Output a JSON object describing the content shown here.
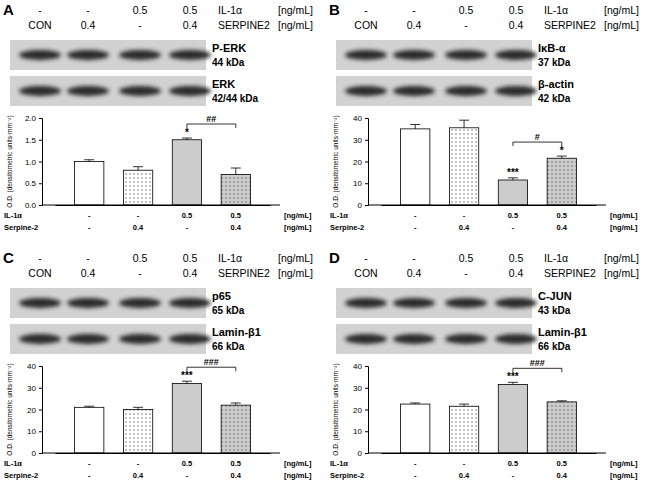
{
  "chart_data": [
    {
      "type": "bar",
      "panel": "A",
      "header": [
        {
          "values": [
            "-",
            "-",
            "0.5",
            "0.5"
          ],
          "label": "IL-1α",
          "unit": "[ng/mL]"
        },
        {
          "values": [
            "CON",
            "0.4",
            "-",
            "0.4"
          ],
          "label": "SERPINE2",
          "unit": "[ng/mL]"
        }
      ],
      "blots": [
        {
          "name": "P-ERK",
          "size": "44 kDa"
        },
        {
          "name": "ERK",
          "size": "42/44 kDa"
        }
      ],
      "y_label": "O.D. (densitometric units·mm⁻²)",
      "categories": [
        null,
        null,
        null,
        null
      ],
      "values": [
        1.0,
        0.8,
        1.5,
        0.7
      ],
      "errors": [
        0.04,
        0.08,
        0.04,
        0.15
      ],
      "colors": [
        "#ffffff",
        "#ffffff",
        "#cccccc",
        "#cccccc"
      ],
      "ylim": [
        0,
        2
      ],
      "yticks": [
        {
          "value": 0,
          "label": "0.0"
        },
        {
          "value": 0.5,
          "label": "0.5"
        },
        {
          "value": 1,
          "label": "1.0"
        },
        {
          "value": 1.5,
          "label": "1.5"
        },
        {
          "value": 2,
          "label": "2.0"
        }
      ],
      "annotations": [
        {
          "text": "*",
          "category": 2
        }
      ],
      "brackets": [
        {
          "text": "##",
          "from": 2,
          "to": 3
        }
      ],
      "treatments": [
        {
          "label": "IL-1α",
          "values": [
            "-",
            "-",
            "0.5",
            "0.5"
          ],
          "unit": "[ng/mL]"
        },
        {
          "label": "Serpine-2",
          "values": [
            "-",
            "0.4",
            "-",
            "0.4"
          ],
          "unit": "[ng/mL]"
        }
      ]
    },
    {
      "type": "bar",
      "panel": "B",
      "header": [
        {
          "values": [
            "-",
            "-",
            "0.5",
            "0.5"
          ],
          "label": "IL-1α",
          "unit": "[ng/mL]"
        },
        {
          "values": [
            "CON",
            "0.4",
            "-",
            "0.4"
          ],
          "label": "SERPINE2",
          "unit": "[ng/mL]"
        }
      ],
      "blots": [
        {
          "name": "IκB-α",
          "size": "37 kDa"
        },
        {
          "name": "β-actin",
          "size": "42 kDa"
        }
      ],
      "y_label": "O.D. (densitometric units·mm⁻²)",
      "categories": [
        null,
        null,
        null,
        null
      ],
      "values": [
        35,
        35.5,
        11.5,
        21.5
      ],
      "errors": [
        2,
        3.5,
        1,
        1
      ],
      "colors": [
        "#ffffff",
        "#ffffff",
        "#cccccc",
        "#cccccc"
      ],
      "ylim": [
        0,
        40
      ],
      "yticks": [
        0,
        10,
        20,
        30,
        40
      ],
      "annotations": [
        {
          "text": "***",
          "category": 2
        },
        {
          "text": "*",
          "category": 3
        }
      ],
      "brackets": [
        {
          "text": "#",
          "from": 2,
          "to": 3
        }
      ],
      "treatments": [
        {
          "label": "IL-1α",
          "values": [
            "-",
            "-",
            "0.5",
            "0.5"
          ],
          "unit": "[ng/mL]"
        },
        {
          "label": "Serpine-2",
          "values": [
            "-",
            "0.4",
            "-",
            "0.4"
          ],
          "unit": "[ng/mL]"
        }
      ]
    },
    {
      "type": "bar",
      "panel": "C",
      "header": [
        {
          "values": [
            "-",
            "-",
            "0.5",
            "0.5"
          ],
          "label": "IL-1α",
          "unit": "[ng/mL]"
        },
        {
          "values": [
            "CON",
            "0.4",
            "-",
            "0.4"
          ],
          "label": "SERPINE2",
          "unit": "[ng/mL]"
        }
      ],
      "blots": [
        {
          "name": "p65",
          "size": "65 kDa"
        },
        {
          "name": "Lamin-β1",
          "size": "66 kDa"
        }
      ],
      "y_label": "O.D. (densitometric units·mm⁻²)",
      "categories": [
        null,
        null,
        null,
        null
      ],
      "values": [
        21,
        20,
        32,
        22
      ],
      "errors": [
        0.5,
        1,
        1,
        1
      ],
      "colors": [
        "#ffffff",
        "#ffffff",
        "#cccccc",
        "#cccccc"
      ],
      "ylim": [
        0,
        40
      ],
      "yticks": [
        0,
        10,
        20,
        30,
        40
      ],
      "annotations": [
        {
          "text": "***",
          "category": 2
        }
      ],
      "brackets": [
        {
          "text": "###",
          "from": 2,
          "to": 3
        }
      ],
      "treatments": [
        {
          "label": "IL-1α",
          "values": [
            "-",
            "-",
            "0.5",
            "0.5"
          ],
          "unit": "[ng/mL]"
        },
        {
          "label": "Serpine-2",
          "values": [
            "-",
            "0.4",
            "-",
            "0.4"
          ],
          "unit": "[ng/mL]"
        }
      ]
    },
    {
      "type": "bar",
      "panel": "D",
      "header": [
        {
          "values": [
            "-",
            "-",
            "0.5",
            "0.5"
          ],
          "label": "IL-1α",
          "unit": "[ng/mL]"
        },
        {
          "values": [
            "CON",
            "0.4",
            "-",
            "0.4"
          ],
          "label": "SERPINE2",
          "unit": "[ng/mL]"
        }
      ],
      "blots": [
        {
          "name": "C-JUN",
          "size": "43 kDa"
        },
        {
          "name": "Lamin-β1",
          "size": "66 kDa"
        }
      ],
      "y_label": "O.D. (densitometric units·mm⁻²)",
      "categories": [
        null,
        null,
        null,
        null
      ],
      "values": [
        22.5,
        21.5,
        31.5,
        23.5
      ],
      "errors": [
        0.5,
        1,
        1,
        0.5
      ],
      "colors": [
        "#ffffff",
        "#ffffff",
        "#cccccc",
        "#cccccc"
      ],
      "ylim": [
        0,
        40
      ],
      "yticks": [
        0,
        10,
        20,
        30,
        40
      ],
      "annotations": [
        {
          "text": "***",
          "category": 2
        }
      ],
      "brackets": [
        {
          "text": "###",
          "from": 2,
          "to": 3
        }
      ],
      "treatments": [
        {
          "label": "IL-1α",
          "values": [
            "-",
            "-",
            "0.5",
            "0.5"
          ],
          "unit": "[ng/mL]"
        },
        {
          "label": "Serpine-2",
          "values": [
            "-",
            "0.4",
            "-",
            "0.4"
          ],
          "unit": "[ng/mL]"
        }
      ]
    }
  ]
}
